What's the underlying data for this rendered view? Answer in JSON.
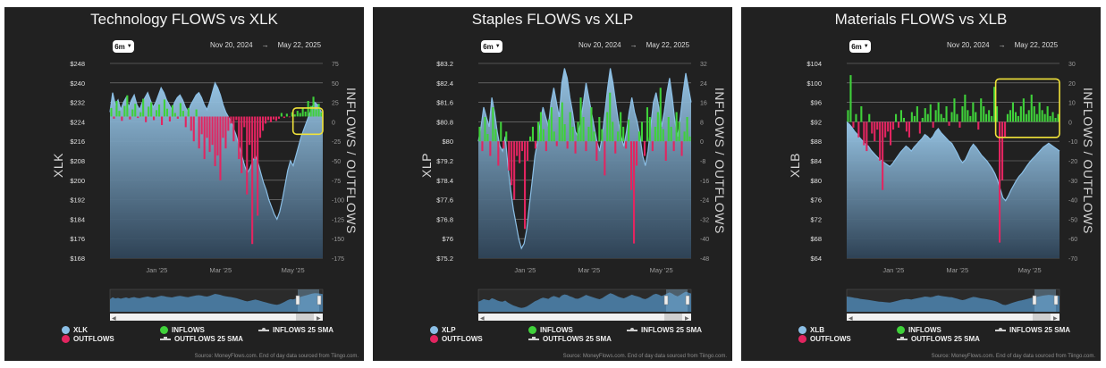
{
  "colors": {
    "price_fill": "#8bbfe6",
    "inflow": "#3fd13a",
    "outflow": "#e22560",
    "highlight": "#f1e33a",
    "panel_bg": "#212121"
  },
  "legend": {
    "price_label_icon": "circle",
    "inflows_label": "INFLOWS",
    "outflows_label": "OUTFLOWS",
    "inflows_sma_label": "INFLOWS 25 SMA",
    "outflows_sma_label": "OUTFLOWS 25 SMA"
  },
  "date_range": {
    "button": "6m",
    "start": "Nov 20, 2024",
    "arrow": "→",
    "end": "May 22, 2025"
  },
  "source_note": "Source: MoneyFlows.com. End of day data sourced from Tiingo.com.",
  "right_axis_label": "INFLOWS / OUTFLOWS",
  "chart_data": [
    {
      "type": "bar",
      "title": "Technology FLOWS vs XLK",
      "ticker": "XLK",
      "left_ticks": [
        "$248",
        "$240",
        "$232",
        "$224",
        "$216",
        "$208",
        "$200",
        "$192",
        "$184",
        "$176",
        "$168"
      ],
      "left_range": [
        168,
        248
      ],
      "right_ticks": [
        "75",
        "50",
        "25",
        "0",
        "-25",
        "-50",
        "-75",
        "-100",
        "-125",
        "-150",
        "-175"
      ],
      "right_range": [
        -200,
        75
      ],
      "x_ticks": [
        "Jan '25",
        "Mar '25",
        "May '25"
      ],
      "x_tick_pos": [
        0.22,
        0.52,
        0.86
      ],
      "price": [
        228,
        236,
        231,
        233,
        229,
        232,
        234,
        230,
        233,
        235,
        231,
        229,
        232,
        234,
        236,
        233,
        230,
        232,
        235,
        238,
        236,
        233,
        231,
        229,
        232,
        234,
        235,
        233,
        230,
        228,
        231,
        233,
        235,
        236,
        234,
        231,
        229,
        232,
        236,
        240,
        238,
        235,
        231,
        228,
        226,
        224,
        221,
        218,
        214,
        210,
        206,
        203,
        205,
        208,
        210,
        207,
        203,
        199,
        196,
        192,
        189,
        186,
        184,
        187,
        192,
        198,
        204,
        208,
        206,
        210,
        214,
        218,
        221,
        224,
        227,
        230,
        232,
        231,
        229,
        227
      ],
      "flows": [
        12,
        -3,
        22,
        8,
        -6,
        15,
        30,
        -4,
        10,
        18,
        -2,
        6,
        25,
        -8,
        14,
        20,
        -5,
        9,
        17,
        -12,
        24,
        11,
        -7,
        16,
        5,
        -3,
        19,
        8,
        -15,
        12,
        -20,
        -35,
        10,
        -45,
        -25,
        -60,
        -30,
        -50,
        -40,
        -70,
        -55,
        -90,
        -30,
        -45,
        -20,
        -10,
        -35,
        -5,
        -60,
        -80,
        -15,
        -110,
        -40,
        -180,
        -60,
        -140,
        -30,
        -20,
        -10,
        -5,
        -8,
        -4,
        -6,
        -3,
        5,
        -2,
        4,
        -1,
        6,
        3,
        8,
        5,
        12,
        7,
        22,
        15,
        28,
        10,
        18,
        6
      ],
      "highlight": {
        "x0": 0.86,
        "x1": 1.0,
        "y0": 12,
        "y1": -25
      }
    },
    {
      "type": "bar",
      "title": "Staples FLOWS vs XLP",
      "ticker": "XLP",
      "left_ticks": [
        "$83.2",
        "$82.4",
        "$81.6",
        "$80.8",
        "$80",
        "$79.2",
        "$78.4",
        "$77.6",
        "$76.8",
        "$76",
        "$75.2"
      ],
      "left_range": [
        75.2,
        83.2
      ],
      "right_ticks": [
        "32",
        "24",
        "16",
        "8",
        "0",
        "-8",
        "-16",
        "-24",
        "-32",
        "-40",
        "-48"
      ],
      "right_range": [
        -48,
        32
      ],
      "x_ticks": [
        "Jan '25",
        "Mar '25",
        "May '25"
      ],
      "x_tick_pos": [
        0.22,
        0.52,
        0.86
      ],
      "price": [
        80.0,
        80.6,
        81.4,
        81.0,
        80.6,
        81.8,
        81.2,
        80.4,
        79.8,
        79.6,
        80.2,
        79.0,
        78.0,
        77.2,
        76.6,
        76.0,
        75.6,
        75.8,
        76.4,
        77.4,
        78.4,
        79.4,
        80.0,
        80.8,
        81.4,
        81.0,
        80.6,
        81.6,
        82.2,
        81.6,
        81.0,
        82.4,
        83.0,
        82.6,
        81.8,
        81.2,
        80.4,
        80.2,
        80.8,
        81.6,
        82.4,
        81.8,
        81.2,
        80.6,
        80.0,
        79.6,
        80.2,
        81.2,
        82.2,
        83.0,
        82.4,
        81.6,
        80.8,
        80.2,
        79.8,
        80.4,
        81.2,
        81.8,
        81.2,
        80.8,
        80.2,
        79.4,
        79.0,
        79.6,
        80.6,
        81.6,
        82.0,
        81.4,
        80.6,
        81.2,
        82.0,
        82.6,
        81.8,
        80.8,
        80.2,
        81.0,
        82.0,
        82.8,
        82.2,
        81.6
      ],
      "flows": [
        6,
        -4,
        10,
        3,
        -6,
        14,
        5,
        -10,
        8,
        -3,
        4,
        -12,
        -18,
        -24,
        -6,
        -9,
        -4,
        -36,
        -8,
        2,
        6,
        -3,
        8,
        12,
        5,
        -4,
        9,
        14,
        4,
        -2,
        10,
        16,
        7,
        -3,
        12,
        6,
        -5,
        8,
        18,
        10,
        -4,
        6,
        14,
        4,
        -8,
        10,
        5,
        -14,
        12,
        20,
        8,
        -5,
        4,
        12,
        6,
        -3,
        9,
        -20,
        -42,
        -10,
        4,
        8,
        -6,
        14,
        10,
        -4,
        6,
        12,
        22,
        5,
        -8,
        10,
        6,
        -4,
        12,
        8,
        -6,
        4,
        10,
        2
      ],
      "highlight": null
    },
    {
      "type": "bar",
      "title": "Materials FLOWS vs XLB",
      "ticker": "XLB",
      "left_ticks": [
        "$104",
        "$100",
        "$96",
        "$92",
        "$88",
        "$84",
        "$80",
        "$76",
        "$72",
        "$68",
        "$64"
      ],
      "left_range": [
        64,
        104
      ],
      "right_ticks": [
        "30",
        "20",
        "10",
        "0",
        "-10",
        "-20",
        "-30",
        "-40",
        "-50",
        "-60",
        "-70"
      ],
      "right_range": [
        -70,
        30
      ],
      "x_ticks": [
        "Jan '25",
        "Mar '25",
        "May '25"
      ],
      "x_tick_pos": [
        0.22,
        0.52,
        0.86
      ],
      "price": [
        92,
        91.5,
        90.8,
        90,
        89.4,
        88.6,
        88,
        87.4,
        87,
        86.2,
        85.6,
        85,
        84.4,
        84,
        83.6,
        83.2,
        82.8,
        83.4,
        84.2,
        85,
        85.8,
        86.4,
        87,
        86.6,
        86,
        86.8,
        87.4,
        88,
        88.6,
        89.4,
        89,
        88.4,
        89,
        90,
        90.6,
        89.8,
        89.2,
        88.6,
        88,
        87.6,
        86.6,
        85.6,
        84.4,
        83.6,
        84.2,
        85.4,
        86.6,
        87.4,
        86.8,
        86,
        85.2,
        84.6,
        84,
        83.2,
        82.4,
        81.4,
        80,
        78.2,
        76.4,
        75.8,
        76.8,
        78,
        79,
        80,
        80.8,
        81.4,
        82.2,
        83,
        83.8,
        84.4,
        85,
        85.6,
        86.2,
        86.8,
        87.2,
        87.6,
        87.2,
        86.8,
        86.4,
        86
      ],
      "flows": [
        6,
        24,
        -3,
        4,
        -8,
        8,
        -12,
        -15,
        4,
        -6,
        -10,
        -4,
        -20,
        -35,
        -8,
        -5,
        -12,
        -4,
        4,
        -3,
        6,
        2,
        -5,
        -8,
        5,
        3,
        8,
        -6,
        2,
        7,
        4,
        9,
        -3,
        6,
        10,
        4,
        2,
        8,
        -2,
        5,
        12,
        4,
        -3,
        8,
        14,
        6,
        3,
        10,
        5,
        -4,
        12,
        8,
        4,
        6,
        3,
        18,
        8,
        -62,
        -30,
        -8,
        4,
        6,
        10,
        5,
        3,
        8,
        12,
        4,
        6,
        14,
        8,
        4,
        10,
        6,
        4,
        8,
        3,
        5,
        2,
        4
      ],
      "highlight": {
        "x0": 0.7,
        "x1": 1.0,
        "y0": 22,
        "y1": -8
      }
    }
  ]
}
